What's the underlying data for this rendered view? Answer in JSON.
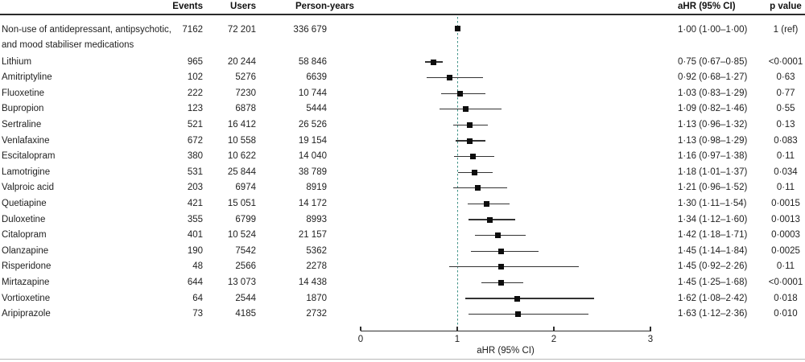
{
  "colors": {
    "reference_line": "#3f9287",
    "marker": "#0d0d0d",
    "ci_line": "#333333",
    "header_rule": "#2b2b2b",
    "bottom_rule": "#b8b8b8",
    "text": "#1f1f1f"
  },
  "chart_data": {
    "type": "forest",
    "title": "",
    "xlabel": "aHR (95% CI)",
    "xlim": [
      0,
      3
    ],
    "xticks": [
      "0",
      "1",
      "2",
      "3"
    ],
    "reference_line_x": 1,
    "grid": false,
    "columns": {
      "events": "Events",
      "users": "Users",
      "person_years": "Person-years",
      "ahr": "aHR (95% CI)",
      "p": "p value"
    },
    "rows": [
      {
        "label": "Non-use of antidepressant, antipsychotic,",
        "label_line2": "and mood stabiliser medications",
        "events": "7162",
        "users": "72 201",
        "person_years": "336 679",
        "ahr": 1.0,
        "ci_low": 1.0,
        "ci_high": 1.0,
        "ahr_text": "1·00 (1·00–1·00)",
        "p_text": "1 (ref)"
      },
      {
        "label": "Lithium",
        "events": "965",
        "users": "20 244",
        "person_years": "58 846",
        "ahr": 0.75,
        "ci_low": 0.67,
        "ci_high": 0.85,
        "ahr_text": "0·75 (0·67–0·85)",
        "p_text": "<0·0001"
      },
      {
        "label": "Amitriptyline",
        "events": "102",
        "users": "5276",
        "person_years": "6639",
        "ahr": 0.92,
        "ci_low": 0.68,
        "ci_high": 1.27,
        "ahr_text": "0·92 (0·68–1·27)",
        "p_text": "0·63"
      },
      {
        "label": "Fluoxetine",
        "events": "222",
        "users": "7230",
        "person_years": "10 744",
        "ahr": 1.03,
        "ci_low": 0.83,
        "ci_high": 1.29,
        "ahr_text": "1·03 (0·83–1·29)",
        "p_text": "0·77"
      },
      {
        "label": "Bupropion",
        "events": "123",
        "users": "6878",
        "person_years": "5444",
        "ahr": 1.09,
        "ci_low": 0.82,
        "ci_high": 1.46,
        "ahr_text": "1·09 (0·82–1·46)",
        "p_text": "0·55"
      },
      {
        "label": "Sertraline",
        "events": "521",
        "users": "16 412",
        "person_years": "26 526",
        "ahr": 1.13,
        "ci_low": 0.96,
        "ci_high": 1.32,
        "ahr_text": "1·13 (0·96–1·32)",
        "p_text": "0·13"
      },
      {
        "label": "Venlafaxine",
        "events": "672",
        "users": "10 558",
        "person_years": "19 154",
        "ahr": 1.13,
        "ci_low": 0.98,
        "ci_high": 1.29,
        "ahr_text": "1·13 (0·98–1·29)",
        "p_text": "0·083"
      },
      {
        "label": "Escitalopram",
        "events": "380",
        "users": "10 622",
        "person_years": "14 040",
        "ahr": 1.16,
        "ci_low": 0.97,
        "ci_high": 1.38,
        "ahr_text": "1·16 (0·97–1·38)",
        "p_text": "0·11"
      },
      {
        "label": "Lamotrigine",
        "events": "531",
        "users": "25 844",
        "person_years": "38 789",
        "ahr": 1.18,
        "ci_low": 1.01,
        "ci_high": 1.37,
        "ahr_text": "1·18 (1·01–1·37)",
        "p_text": "0·034"
      },
      {
        "label": "Valproic acid",
        "events": "203",
        "users": "6974",
        "person_years": "8919",
        "ahr": 1.21,
        "ci_low": 0.96,
        "ci_high": 1.52,
        "ahr_text": "1·21 (0·96–1·52)",
        "p_text": "0·11"
      },
      {
        "label": "Quetiapine",
        "events": "421",
        "users": "15 051",
        "person_years": "14 172",
        "ahr": 1.3,
        "ci_low": 1.11,
        "ci_high": 1.54,
        "ahr_text": "1·30 (1·11–1·54)",
        "p_text": "0·0015"
      },
      {
        "label": "Duloxetine",
        "events": "355",
        "users": "6799",
        "person_years": "8993",
        "ahr": 1.34,
        "ci_low": 1.12,
        "ci_high": 1.6,
        "ahr_text": "1·34 (1·12–1·60)",
        "p_text": "0·0013"
      },
      {
        "label": "Citalopram",
        "events": "401",
        "users": "10 524",
        "person_years": "21 157",
        "ahr": 1.42,
        "ci_low": 1.18,
        "ci_high": 1.71,
        "ahr_text": "1·42 (1·18–1·71)",
        "p_text": "0·0003"
      },
      {
        "label": "Olanzapine",
        "events": "190",
        "users": "7542",
        "person_years": "5362",
        "ahr": 1.45,
        "ci_low": 1.14,
        "ci_high": 1.84,
        "ahr_text": "1·45 (1·14–1·84)",
        "p_text": "0·0025"
      },
      {
        "label": "Risperidone",
        "events": "48",
        "users": "2566",
        "person_years": "2278",
        "ahr": 1.45,
        "ci_low": 0.92,
        "ci_high": 2.26,
        "ahr_text": "1·45 (0·92–2·26)",
        "p_text": "0·11"
      },
      {
        "label": "Mirtazapine",
        "events": "644",
        "users": "13 073",
        "person_years": "14 438",
        "ahr": 1.45,
        "ci_low": 1.25,
        "ci_high": 1.68,
        "ahr_text": "1·45 (1·25–1·68)",
        "p_text": "<0·0001"
      },
      {
        "label": "Vortioxetine",
        "events": "64",
        "users": "2544",
        "person_years": "1870",
        "ahr": 1.62,
        "ci_low": 1.08,
        "ci_high": 2.42,
        "ahr_text": "1·62 (1·08–2·42)",
        "p_text": "0·018"
      },
      {
        "label": "Aripiprazole",
        "events": "73",
        "users": "4185",
        "person_years": "2732",
        "ahr": 1.63,
        "ci_low": 1.12,
        "ci_high": 2.36,
        "ahr_text": "1·63 (1·12–2·36)",
        "p_text": "0·010"
      }
    ]
  }
}
